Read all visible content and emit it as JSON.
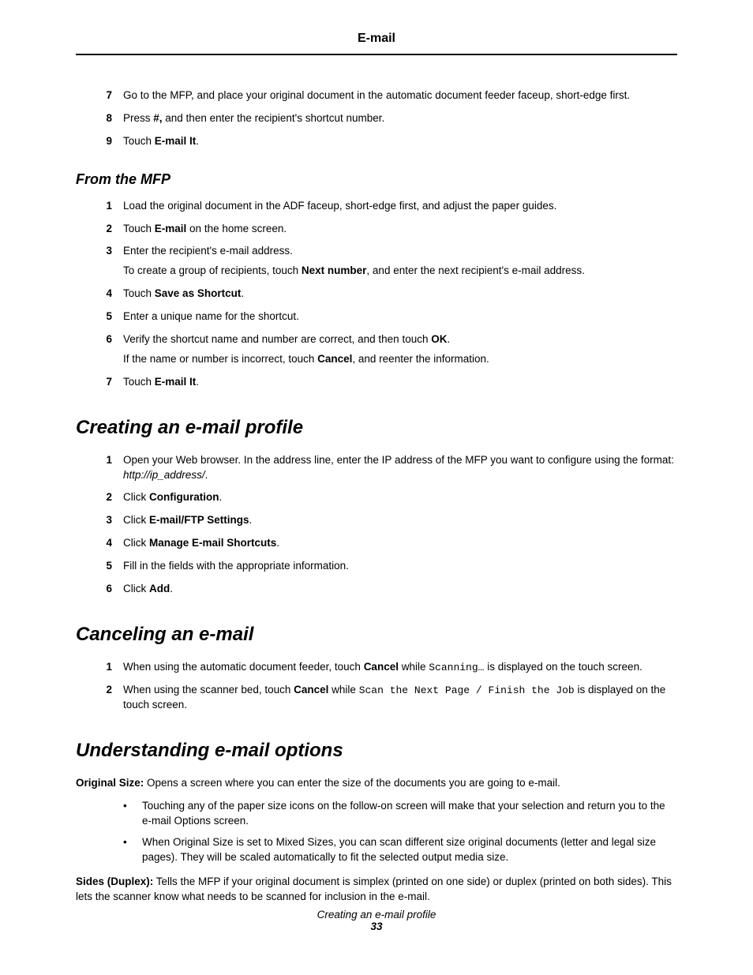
{
  "header": {
    "title": "E-mail"
  },
  "top_steps": [
    {
      "n": "7",
      "html": "Go to the MFP, and place your original document in the automatic document feeder faceup, short-edge first."
    },
    {
      "n": "8",
      "html": "Press <b>#,</b> and then enter the recipient's shortcut number."
    },
    {
      "n": "9",
      "html": "Touch <b>E-mail It</b>."
    }
  ],
  "from_mfp": {
    "heading": "From the MFP",
    "steps": [
      {
        "n": "1",
        "html": "Load the original document in the ADF faceup, short-edge first, and adjust the paper guides."
      },
      {
        "n": "2",
        "html": "Touch <b>E-mail</b> on the home screen."
      },
      {
        "n": "3",
        "html": "Enter the recipient's e-mail address.",
        "sub": "To create a group of recipients, touch <b>Next number</b>, and enter the next recipient's e-mail address."
      },
      {
        "n": "4",
        "html": "Touch <b>Save as Shortcut</b>."
      },
      {
        "n": "5",
        "html": "Enter a unique name for the shortcut."
      },
      {
        "n": "6",
        "html": "Verify the shortcut name and number are correct, and then touch <b>OK</b>.",
        "sub": "If the name or number is incorrect, touch <b>Cancel</b>, and reenter the information."
      },
      {
        "n": "7",
        "html": "Touch <b>E-mail It</b>."
      }
    ]
  },
  "profile": {
    "heading": "Creating an e-mail profile",
    "steps": [
      {
        "n": "1",
        "html": "Open your Web browser. In the address line, enter the IP address of the MFP you want to configure using the format: <em class='addr'>http://ip_address/</em>."
      },
      {
        "n": "2",
        "html": "Click <b>Configuration</b>."
      },
      {
        "n": "3",
        "html": "Click <b>E-mail/FTP Settings</b>."
      },
      {
        "n": "4",
        "html": "Click <b>Manage E-mail Shortcuts</b>."
      },
      {
        "n": "5",
        "html": "Fill in the fields with the appropriate information."
      },
      {
        "n": "6",
        "html": "Click <b>Add</b>."
      }
    ]
  },
  "cancel": {
    "heading": "Canceling an e-mail",
    "steps": [
      {
        "n": "1",
        "html": "When using the automatic document feeder, touch <b>Cancel</b> while <span class='mono'>Scanning…</span> is displayed on the touch screen."
      },
      {
        "n": "2",
        "html": "When using the scanner bed, touch <b>Cancel</b> while <span class='mono'>Scan the Next Page / Finish the Job</span> is displayed on the touch screen."
      }
    ]
  },
  "options": {
    "heading": "Understanding e-mail options",
    "p1": "<b>Original Size:</b> Opens a screen where you can enter the size of the documents you are going to e-mail.",
    "bullets": [
      "Touching any of the paper size icons on the follow-on screen will make that your selection and return you to the e-mail Options screen.",
      "When Original Size is set to Mixed Sizes, you can scan different size original documents (letter and legal size pages). They will be scaled automatically to fit the selected output media size."
    ],
    "p2": "<b>Sides (Duplex):</b> Tells the MFP if your original document is simplex (printed on one side) or duplex (printed on both sides). This lets the scanner know what needs to be scanned for inclusion in the e-mail."
  },
  "footer": {
    "title": "Creating an e-mail profile",
    "page": "33"
  }
}
